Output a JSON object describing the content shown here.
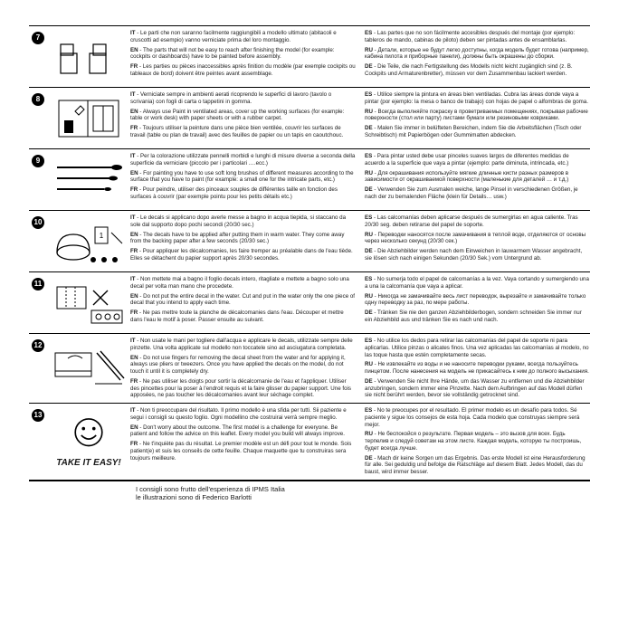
{
  "colors": {
    "text": "#1a1a1a",
    "bg": "#ffffff",
    "rule": "#000000"
  },
  "sections": [
    {
      "num": "7",
      "icon": "seats",
      "left": [
        {
          "lang": "IT",
          "text": "Le parti che non saranno facilmente raggiungibili a modello ultimato (abitacoli e cruscotti ad esempio) vanno verniciate prima del loro montaggio."
        },
        {
          "lang": "EN",
          "text": "The parts that will not be easy to reach after finishing the model (for example: cockpits or dashboards) have to be painted before assembly."
        },
        {
          "lang": "FR",
          "text": "Les parties ou pièces inaccessibles après finition du modèle (par exemple cockpits ou tableaux de bord) doivent être peintes avant assemblage."
        }
      ],
      "right": [
        {
          "lang": "ES",
          "text": "Las partes que no son fácilmente accesibles después del montaje (por ejemplo: tableros de mando, cabinas de piloto) deben ser pintadas antes de ensamblarlas."
        },
        {
          "lang": "RU",
          "text": "Детали, которые не будут легко доступны, когда модель будет готова (например, кабина пилота и приборные панели), должны быть окрашены до сборки."
        },
        {
          "lang": "DE",
          "text": "Die Teile, die nach Fertigstellung des Modells nicht leicht zugänglich sind (z. B. Cockpits und Armaturenbretter), müssen vor dem Zusammenbau lackiert werden."
        }
      ]
    },
    {
      "num": "8",
      "icon": "workspace",
      "left": [
        {
          "lang": "IT",
          "text": "Verniciate sempre in ambienti aerati ricoprendo le superfici di lavoro (tavolo o scrivania) con fogli di carta o tappetini in gomma."
        },
        {
          "lang": "EN",
          "text": "Always use Paint in ventilated areas, cover up the working surfaces (for example: table or work desk) with paper sheets or with a rubber carpet."
        },
        {
          "lang": "FR",
          "text": "Toujours utiliser la peinture dans une pièce bien ventilée, couvrir les surfaces de travail (table ou plan de travail) avec des feuilles de papier ou un tapis en caoutchouc."
        }
      ],
      "right": [
        {
          "lang": "ES",
          "text": "Utilice siempre la pintura en áreas bien ventiladas. Cubra las áreas donde vaya a pintar (por ejemplo: la mesa o banco de trabajo) con hojas de papel o alfombras de goma."
        },
        {
          "lang": "RU",
          "text": "Всегда выполняйте покраску в проветриваемых помещениях, покрывая рабочие поверхности (стол или парту) листами бумаги или резиновыми ковриками."
        },
        {
          "lang": "DE",
          "text": "Malen Sie immer in belüfteten Bereichen, indem Sie die Arbeitsflächen (Tisch oder Schreibtisch) mit Papierbögen oder Gummimatten abdecken."
        }
      ]
    },
    {
      "num": "9",
      "icon": "brushes",
      "left": [
        {
          "lang": "IT",
          "text": "Per la colorazione utilizzate pennelli morbidi e lunghi di misure diverse a seconda della superficie da verniciare (piccolo per i particolari ….ecc.)"
        },
        {
          "lang": "EN",
          "text": "For painting you have to use soft long brushes of different measures according to the surface that you have to paint (for example: a small one for the intricate parts, etc.)"
        },
        {
          "lang": "FR",
          "text": "Pour peindre, utiliser des pinceaux souples de différentes taille en fonction des surfaces à couvrir (par exemple pointu pour les petits détails etc.)"
        }
      ],
      "right": [
        {
          "lang": "ES",
          "text": "Para pintar usted debe usar pinceles suaves largos de diferentes medidas de acuerdo a la superficie que vaya a pintar (ejemplo: parte diminuta, intrincada, etc.)"
        },
        {
          "lang": "RU",
          "text": "Для окрашивания используйте мягкие длинные кисти разных размеров в зависимости от окрашиваемой поверхности (маленькие для деталей … и т.д.)"
        },
        {
          "lang": "DE",
          "text": "Verwenden Sie zum Ausmalen weiche, lange Pinsel in verschiedenen Größen, je nach der zu bemalenden Fläche (klein für Details… usw.)"
        }
      ]
    },
    {
      "num": "10",
      "icon": "decal-water",
      "left": [
        {
          "lang": "IT",
          "text": "Le decals si applicano dopo averle messe a bagno in acqua tiepida, si staccano da sole dal supporto dopo pochi secondi (20/30 sec.)"
        },
        {
          "lang": "EN",
          "text": "The decals have to be applied after putting them in warm water. They come away from the backing paper after a few seconds (20/30 sec.)"
        },
        {
          "lang": "FR",
          "text": "Pour appliquer les décalcomanies, les faire tremper au préalable dans de l'eau tiède. Elles se détachent du papier support après 20/30 secondes."
        }
      ],
      "right": [
        {
          "lang": "ES",
          "text": "Las calcomanías deben aplicarse después de sumergirlas en agua caliente. Tras 20/30 seg. deben retirarse del papel de soporte."
        },
        {
          "lang": "RU",
          "text": "Переводки наносятся после замачивания в теплой воде, отделяются от основы через несколько секунд (20/30 сек.)"
        },
        {
          "lang": "DE",
          "text": "Die Abziehbilder werden nach dem Einweichen in lauwarmem Wasser angebracht, sie lösen sich nach einigen Sekunden (20/30 Sek.) vom Untergrund ab."
        }
      ]
    },
    {
      "num": "11",
      "icon": "decal-cut",
      "left": [
        {
          "lang": "IT",
          "text": "Non mettete mai a bagno il foglio decals intero, ritagliate e mettete a bagno solo una decal per volta man mano che procedete."
        },
        {
          "lang": "EN",
          "text": "Do not put the entire decal in the water. Cut and put in the water only the one piece of decal that you intend to apply each time."
        },
        {
          "lang": "FR",
          "text": "Ne pas mettre toute la planche de décalcomanies dans l'eau. Découper et mettre dans l'eau le motif à poser. Passer ensuite au suivant."
        }
      ],
      "right": [
        {
          "lang": "ES",
          "text": "No sumerja todo el papel de calcomanías a la vez. Vaya cortando y sumergiendo una a una la calcomanía que vaya a aplicar."
        },
        {
          "lang": "RU",
          "text": "Никогда не замачивайте весь лист переводок, вырезайте и замачивайте только одну переводку за раз, по мере работы."
        },
        {
          "lang": "DE",
          "text": "Tränken Sie nie den ganzen Abziehbilderbogen, sondern schneiden Sie immer nur ein Abziehbild aus und tränken Sie es nach und nach."
        }
      ]
    },
    {
      "num": "12",
      "icon": "tweezers",
      "left": [
        {
          "lang": "IT",
          "text": "Non usate le mani per togliere dall'acqua e applicare le decals, utilizzate sempre delle pinzette. Una volta applicate sul modello non toccatele sino ad asciugatura completata."
        },
        {
          "lang": "EN",
          "text": "Do not use fingers for removing the decal sheet from the water and for applying it, always use pliers or tweezers. Once you have applied the decals on the model, do not touch it until it is completely dry."
        },
        {
          "lang": "FR",
          "text": "Ne pas utiliser les doigts pour sortir la décalcomanie de l'eau et l'appliquer. Utiliser des pincettes pour la poser à l'endroit requis et la faire glisser du papier support. Une fois apposées, ne pas toucher les décalcomanies avant leur séchage complet."
        }
      ],
      "right": [
        {
          "lang": "ES",
          "text": "No utilice los dedos para retirar las calcomanías del papel de soporte ni para aplicarlas. Utilice pinzas o alicates finos. Una vez aplicadas las calcomanías al modelo, no las toque hasta que estén completamente secas."
        },
        {
          "lang": "RU",
          "text": "Не извлекайте из воды и не наносите переводки руками, всегда пользуйтесь пинцетом. После нанесения на модель не прикасайтесь к ним до полного высыхания."
        },
        {
          "lang": "DE",
          "text": "Verwenden Sie nicht Ihre Hände, um das Wasser zu entfernen und die Abziehbilder anzubringen, sondern immer eine Pinzette. Nach dem Aufbringen auf das Modell dürfen sie nicht berührt werden, bevor sie vollständig getrocknet sind."
        }
      ]
    },
    {
      "num": "13",
      "icon": "smiley",
      "tagline": "TAKE IT EASY!",
      "left": [
        {
          "lang": "IT",
          "text": "Non ti preoccupare del risultato. Il primo modello è una sfida per tutti. Sii paziente e segui i consigli su questo foglio. Ogni modellino che costruirai verrà sempre meglio."
        },
        {
          "lang": "EN",
          "text": "Don't worry about the outcome. The first model is a challenge for everyone. Be patient and follow the advice on this leaflet. Every model you build will always improve."
        },
        {
          "lang": "FR",
          "text": "Ne t'inquiète pas du résultat. Le premier modèle est un défi pour tout le monde. Sois patient(e) et suis les conseils de cette feuille. Chaque maquette que tu construiras sera toujours meilleure."
        }
      ],
      "right": [
        {
          "lang": "ES",
          "text": "No te preocupes por el resultado. El primer modelo es un desafío para todos. Sé paciente y sigue los consejos de esta hoja. Cada modelo que construyas siempre será mejor."
        },
        {
          "lang": "RU",
          "text": "Не беспокойся о результате. Первая модель – это вызов для всех. Будь терпелив и следуй советам на этом листе. Каждая модель, которую ты построишь, будет вcегда лучше."
        },
        {
          "lang": "DE",
          "text": "Mach dir keine Sorgen um das Ergebnis. Das erste Modell ist eine Herausforderung für alle. Sei geduldig und befolge die Ratschläge auf diesem Blatt. Jedes Modell, das du baust, wird immer besser."
        }
      ]
    }
  ],
  "footer_line1": "I consigli sono frutto dell'esperienza di IPMS Italia",
  "footer_line2": "le illustrazioni sono di Federico Barlotti"
}
